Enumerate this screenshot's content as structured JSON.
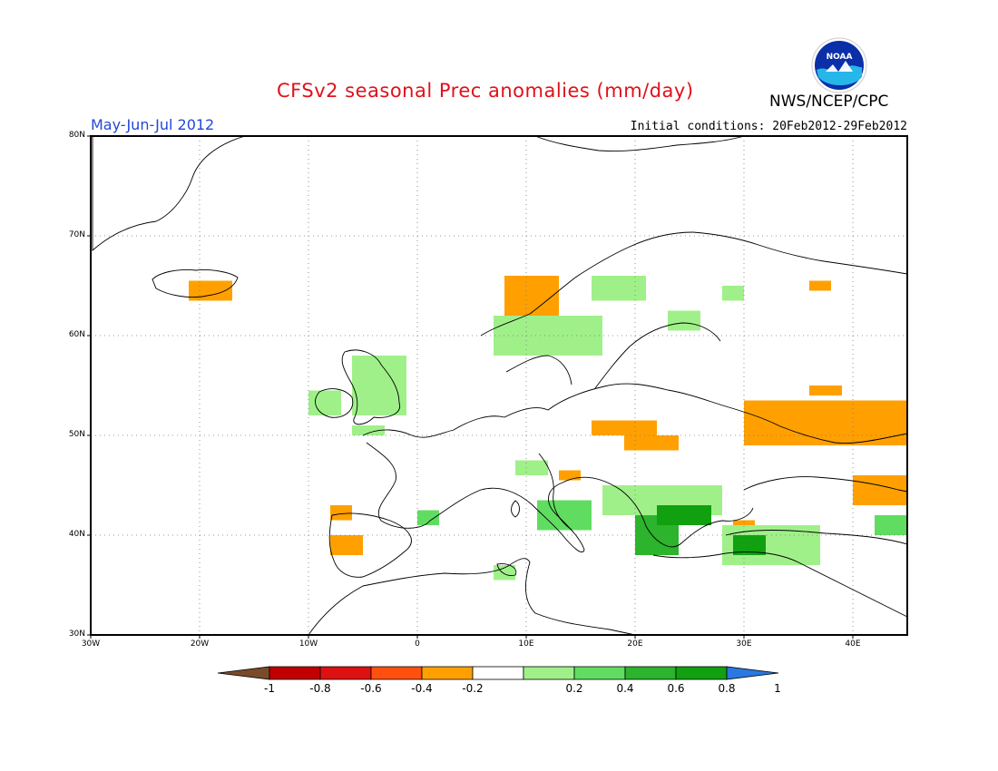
{
  "title": "CFSv2 seasonal Prec anomalies (mm/day)",
  "agency": "NWS/NCEP/CPC",
  "logo_text": "NOAA",
  "period": "May-Jun-Jul 2012",
  "initial_conditions": "Initial conditions: 20Feb2012-29Feb2012",
  "map": {
    "lon_range": [
      -30,
      45
    ],
    "lat_range": [
      30,
      80
    ],
    "lat_labels": [
      "30N",
      "40N",
      "50N",
      "60N",
      "70N",
      "80N"
    ],
    "lon_labels": [
      "30W",
      "20W",
      "10W",
      "0",
      "10E",
      "20E",
      "30E",
      "40E"
    ],
    "grid": "dotted every 10 degrees"
  },
  "colorbar": {
    "labels": [
      "-1",
      "-0.8",
      "-0.6",
      "-0.4",
      "-0.2",
      "0.2",
      "0.4",
      "0.6",
      "0.8",
      "1"
    ],
    "colors": [
      "#7a4a2a",
      "#c00000",
      "#dd1111",
      "#ff5010",
      "#ffa000",
      "#ffffff",
      "#a0f08a",
      "#60dd60",
      "#2cb42c",
      "#10a010",
      "#2a78e0"
    ]
  },
  "colors": {
    "dry_light": "#ffa000",
    "wet_light": "#a0f08a",
    "wet_mid": "#60dd60",
    "wet_strong": "#2cb42c",
    "wet_max": "#10a010"
  },
  "anomaly_regions": [
    {
      "name": "Iceland south",
      "lon": [
        -21,
        -17
      ],
      "lat": [
        63.5,
        65.5
      ],
      "level": -0.3
    },
    {
      "name": "Norway coast",
      "lon": [
        8,
        13
      ],
      "lat": [
        62,
        66
      ],
      "level": -0.3
    },
    {
      "name": "Spain west",
      "lon": [
        -8,
        -5
      ],
      "lat": [
        38,
        40
      ],
      "level": -0.3
    },
    {
      "name": "Spain north",
      "lon": [
        -8,
        -6
      ],
      "lat": [
        41.5,
        43
      ],
      "level": -0.3
    },
    {
      "name": "Czech/Slovakia",
      "lon": [
        16,
        22
      ],
      "lat": [
        50,
        51.5
      ],
      "level": -0.3
    },
    {
      "name": "Carpathians",
      "lon": [
        19,
        24
      ],
      "lat": [
        48.5,
        50
      ],
      "level": -0.3
    },
    {
      "name": "Croatia",
      "lon": [
        13,
        15
      ],
      "lat": [
        45.5,
        46.5
      ],
      "level": -0.3
    },
    {
      "name": "Ukraine/Russia",
      "lon": [
        30,
        45
      ],
      "lat": [
        49,
        53.5
      ],
      "level": -0.3
    },
    {
      "name": "Russia central",
      "lon": [
        36,
        39
      ],
      "lat": [
        54,
        55
      ],
      "level": -0.3
    },
    {
      "name": "Caucasus north",
      "lon": [
        40,
        45
      ],
      "lat": [
        43,
        46
      ],
      "level": -0.3
    },
    {
      "name": "White Sea",
      "lon": [
        36,
        38
      ],
      "lat": [
        64.5,
        65.5
      ],
      "level": -0.3
    },
    {
      "name": "Turkey NW",
      "lon": [
        29,
        31
      ],
      "lat": [
        40.5,
        41.5
      ],
      "level": -0.3
    },
    {
      "name": "Ireland",
      "lon": [
        -10,
        -7
      ],
      "lat": [
        52,
        54.5
      ],
      "level": 0.3
    },
    {
      "name": "Scotland/England",
      "lon": [
        -6,
        -1
      ],
      "lat": [
        52,
        58
      ],
      "level": 0.3
    },
    {
      "name": "France NW",
      "lon": [
        -6,
        -3
      ],
      "lat": [
        50,
        51
      ],
      "level": 0.3
    },
    {
      "name": "Norway south",
      "lon": [
        7,
        17
      ],
      "lat": [
        58,
        62
      ],
      "level": 0.3
    },
    {
      "name": "Sweden north",
      "lon": [
        16,
        21
      ],
      "lat": [
        63.5,
        66
      ],
      "level": 0.3
    },
    {
      "name": "Finland",
      "lon": [
        23,
        26
      ],
      "lat": [
        60.5,
        62.5
      ],
      "level": 0.3
    },
    {
      "name": "Karelia",
      "lon": [
        28,
        30
      ],
      "lat": [
        63.5,
        65
      ],
      "level": 0.3
    },
    {
      "name": "Alps",
      "lon": [
        9,
        12
      ],
      "lat": [
        46,
        47.5
      ],
      "level": 0.3
    },
    {
      "name": "Balkans",
      "lon": [
        17,
        28
      ],
      "lat": [
        42,
        45
      ],
      "level": 0.3
    },
    {
      "name": "Turkey",
      "lon": [
        28,
        37
      ],
      "lat": [
        37,
        41
      ],
      "level": 0.3
    },
    {
      "name": "Spain east",
      "lon": [
        0,
        2
      ],
      "lat": [
        41,
        42.5
      ],
      "level": 0.4
    },
    {
      "name": "Sardinia",
      "lon": [
        7,
        9
      ],
      "lat": [
        35.5,
        37
      ],
      "level": 0.3
    },
    {
      "name": "Italy central",
      "lon": [
        11,
        16
      ],
      "lat": [
        40.5,
        43.5
      ],
      "level": 0.5
    },
    {
      "name": "Greece",
      "lon": [
        20,
        24
      ],
      "lat": [
        38,
        42
      ],
      "level": 0.6
    },
    {
      "name": "Bulgaria",
      "lon": [
        22,
        27
      ],
      "lat": [
        41,
        43
      ],
      "level": 0.8
    },
    {
      "name": "Anatolia west",
      "lon": [
        29,
        32
      ],
      "lat": [
        38,
        40
      ],
      "level": 0.8
    },
    {
      "name": "Georgia",
      "lon": [
        42,
        45
      ],
      "lat": [
        40,
        42
      ],
      "level": 0.4
    }
  ]
}
